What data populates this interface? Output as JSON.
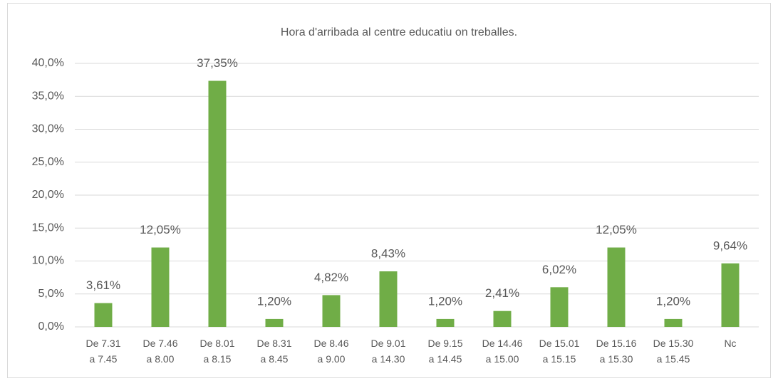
{
  "chart_data": {
    "type": "bar",
    "title": "Hora d'arribada al centre educatiu on treballes.",
    "categories": [
      "De 7.31 a 7.45",
      "De 7.46 a 8.00",
      "De 8.01 a 8.15",
      "De 8.31 a 8.45",
      "De 8.46 a 9.00",
      "De 9.01 a 14.30",
      "De 9.15 a 14.45",
      "De 14.46 a 15.00",
      "De 15.01 a 15.15",
      "De 15.16 a 15.30",
      "De 15.30 a 15.45",
      "Nc"
    ],
    "values": [
      3.61,
      12.05,
      37.35,
      1.2,
      4.82,
      8.43,
      1.2,
      2.41,
      6.02,
      12.05,
      1.2,
      9.64
    ],
    "value_labels": [
      "3,61%",
      "12,05%",
      "37,35%",
      "1,20%",
      "4,82%",
      "8,43%",
      "1,20%",
      "2,41%",
      "6,02%",
      "12,05%",
      "1,20%",
      "9,64%"
    ],
    "color": "#70ad47",
    "ylim": [
      0,
      40
    ],
    "yticks": [
      {
        "value": 0,
        "label": "0,0%"
      },
      {
        "value": 5,
        "label": "5,0%"
      },
      {
        "value": 10,
        "label": "10,0%"
      },
      {
        "value": 15,
        "label": "15,0%"
      },
      {
        "value": 20,
        "label": "20,0%"
      },
      {
        "value": 25,
        "label": "25,0%"
      },
      {
        "value": 30,
        "label": "30,0%"
      },
      {
        "value": 35,
        "label": "35,0%"
      },
      {
        "value": 40,
        "label": "40,0%"
      }
    ],
    "grid": true
  }
}
